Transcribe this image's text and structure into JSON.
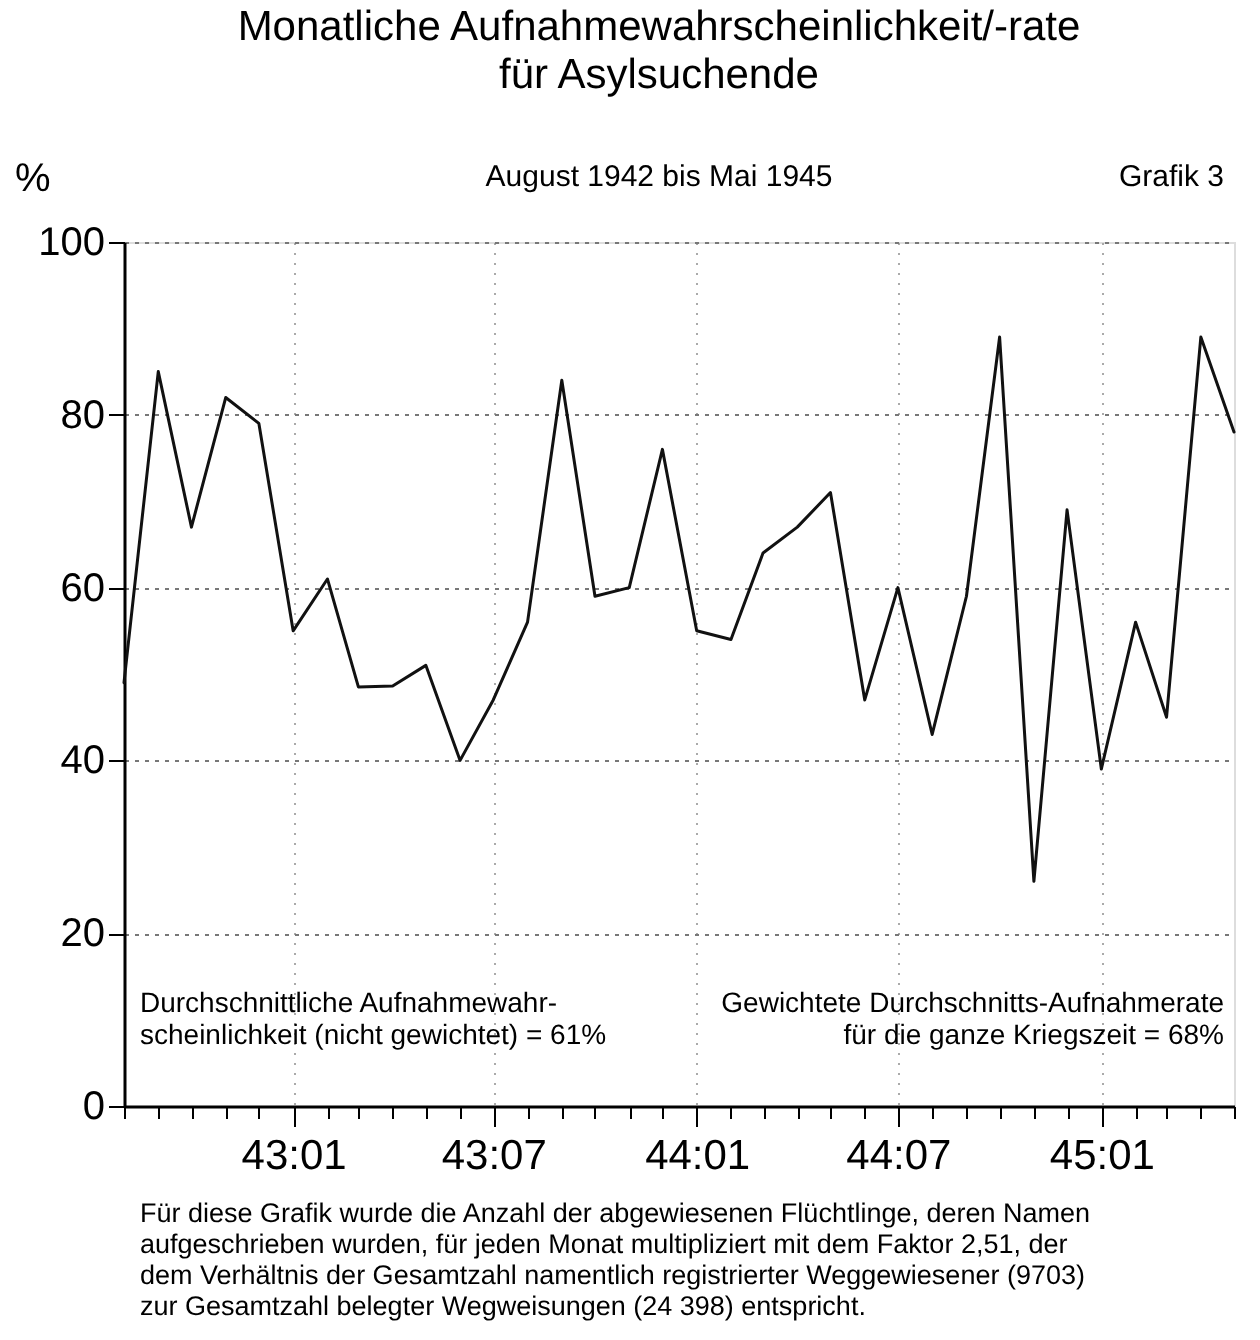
{
  "chart_data": {
    "type": "line",
    "title": "Monatliche Aufnahmewahrscheinlichkeit/-rate\nfür Asylsuchende",
    "subtitle": "August 1942 bis Mai 1945",
    "ylabel": "%",
    "annotations": [
      "Grafik 3",
      "Durchschnittliche Aufnahmewahr-\nscheinlichkeit (nicht gewichtet) = 61%",
      "Gewichtete Durchschnitts-Aufnahmerate\nfür die ganze Kriegszeit = 68%",
      "Für diese Grafik wurde die Anzahl der abgewiesenen Flüchtlinge, deren Namen\naufgeschrieben wurden, für jeden Monat multipliziert mit dem Faktor 2,51, der\ndem Verhältnis der Gesamtzahl namentlich registrierter Weggewiesener (9703)\nzur Gesamtzahl belegter Wegweisungen (24 398) entspricht."
    ],
    "x": [
      "1942-08",
      "1942-09",
      "1942-10",
      "1942-11",
      "1942-12",
      "1943-01",
      "1943-02",
      "1943-03",
      "1943-04",
      "1943-05",
      "1943-06",
      "1943-07",
      "1943-08",
      "1943-09",
      "1943-10",
      "1943-11",
      "1943-12",
      "1944-01",
      "1944-02",
      "1944-03",
      "1944-04",
      "1944-05",
      "1944-06",
      "1944-07",
      "1944-08",
      "1944-09",
      "1944-10",
      "1944-11",
      "1944-12",
      "1945-01",
      "1945-02",
      "1945-03",
      "1945-04",
      "1945-05"
    ],
    "series": [
      {
        "color": "#111111",
        "values": [
          49,
          85,
          67,
          82,
          79,
          55,
          61,
          48.5,
          48.6,
          51,
          40,
          47,
          56,
          84,
          59,
          60,
          76,
          55,
          54,
          64,
          67,
          71,
          47,
          60,
          43,
          59,
          89,
          26,
          69,
          39,
          56,
          45,
          89,
          78
        ]
      }
    ],
    "xlim": [
      "1942-08",
      "1945-05"
    ],
    "xticks": [
      {
        "value": "1942-08",
        "label": null
      },
      {
        "value": "1942-09",
        "label": null
      },
      {
        "value": "1942-10",
        "label": null
      },
      {
        "value": "1942-11",
        "label": null
      },
      {
        "value": "1942-12",
        "label": null
      },
      {
        "value": "1943-01",
        "label": "43:01"
      },
      {
        "value": "1943-02",
        "label": null
      },
      {
        "value": "1943-03",
        "label": null
      },
      {
        "value": "1943-04",
        "label": null
      },
      {
        "value": "1943-05",
        "label": null
      },
      {
        "value": "1943-06",
        "label": null
      },
      {
        "value": "1943-07",
        "label": "43:07"
      },
      {
        "value": "1943-08",
        "label": null
      },
      {
        "value": "1943-09",
        "label": null
      },
      {
        "value": "1943-10",
        "label": null
      },
      {
        "value": "1943-11",
        "label": null
      },
      {
        "value": "1943-12",
        "label": null
      },
      {
        "value": "1944-01",
        "label": "44:01"
      },
      {
        "value": "1944-02",
        "label": null
      },
      {
        "value": "1944-03",
        "label": null
      },
      {
        "value": "1944-04",
        "label": null
      },
      {
        "value": "1944-05",
        "label": null
      },
      {
        "value": "1944-06",
        "label": null
      },
      {
        "value": "1944-07",
        "label": "44:07"
      },
      {
        "value": "1944-08",
        "label": null
      },
      {
        "value": "1944-09",
        "label": null
      },
      {
        "value": "1944-10",
        "label": null
      },
      {
        "value": "1944-11",
        "label": null
      },
      {
        "value": "1944-12",
        "label": null
      },
      {
        "value": "1945-01",
        "label": "45:01"
      },
      {
        "value": "1945-02",
        "label": null
      },
      {
        "value": "1945-03",
        "label": null
      },
      {
        "value": "1945-04",
        "label": null
      },
      {
        "value": "1945-05",
        "label": null
      }
    ],
    "ylim": [
      0,
      100
    ],
    "yticks": [
      0,
      20,
      40,
      60,
      80,
      100
    ],
    "grid": true,
    "legend": false
  }
}
